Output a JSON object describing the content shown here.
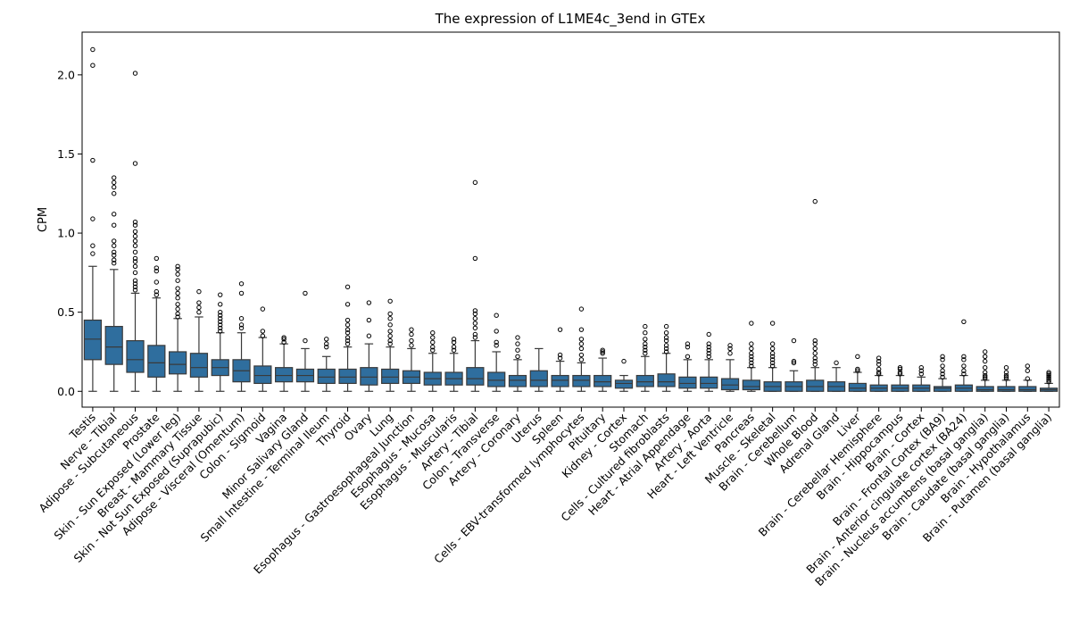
{
  "chart_data": {
    "type": "box",
    "title": "The expression of L1ME4c_3end in GTEx",
    "xlabel": "",
    "ylabel": "CPM",
    "ylim": [
      -0.1,
      2.27
    ],
    "yticks": [
      0.0,
      0.5,
      1.0,
      1.5,
      2.0
    ],
    "ytick_labels": [
      "0.0",
      "0.5",
      "1.0",
      "1.5",
      "2.0"
    ],
    "grid": false,
    "box_color": "#2f6e9e",
    "categories": [
      "Testis",
      "Nerve - Tibial",
      "Adipose - Subcutaneous",
      "Prostate",
      "Skin - Sun Exposed (Lower leg)",
      "Breast - Mammary Tissue",
      "Skin - Not Sun Exposed (Suprapubic)",
      "Adipose - Visceral (Omentum)",
      "Colon - Sigmoid",
      "Vagina",
      "Minor Salivary Gland",
      "Small Intestine - Terminal Ileum",
      "Thyroid",
      "Ovary",
      "Lung",
      "Esophagus - Gastroesophageal Junction",
      "Esophagus - Mucosa",
      "Esophagus - Muscularis",
      "Artery - Tibial",
      "Colon - Transverse",
      "Artery - Coronary",
      "Uterus",
      "Spleen",
      "Cells - EBV-transformed lymphocytes",
      "Pituitary",
      "Kidney - Cortex",
      "Stomach",
      "Cells - Cultured fibroblasts",
      "Heart - Atrial Appendage",
      "Artery - Aorta",
      "Heart - Left Ventricle",
      "Pancreas",
      "Muscle - Skeletal",
      "Brain - Cerebellum",
      "Whole Blood",
      "Adrenal Gland",
      "Liver",
      "Brain - Cerebellar Hemisphere",
      "Brain - Hippocampus",
      "Brain - Cortex",
      "Brain - Frontal Cortex (BA9)",
      "Brain - Anterior cingulate cortex (BA24)",
      "Brain - Nucleus accumbens (basal ganglia)",
      "Brain - Caudate (basal ganglia)",
      "Brain - Hypothalamus",
      "Brain - Putamen (basal ganglia)"
    ],
    "boxes": [
      {
        "min": 0.0,
        "q1": 0.2,
        "median": 0.33,
        "q3": 0.45,
        "max": 0.79,
        "outliers": [
          0.87,
          0.92,
          1.09,
          1.46,
          2.06,
          2.16
        ]
      },
      {
        "min": 0.0,
        "q1": 0.17,
        "median": 0.28,
        "q3": 0.41,
        "max": 0.77,
        "outliers": [
          0.81,
          0.83,
          0.86,
          0.88,
          0.92,
          0.95,
          1.05,
          1.12,
          1.25,
          1.29,
          1.32,
          1.35
        ]
      },
      {
        "min": 0.0,
        "q1": 0.12,
        "median": 0.2,
        "q3": 0.32,
        "max": 0.62,
        "outliers": [
          0.64,
          0.66,
          0.68,
          0.7,
          0.75,
          0.79,
          0.82,
          0.84,
          0.88,
          0.92,
          0.95,
          0.98,
          1.01,
          1.05,
          1.07,
          1.44,
          2.01
        ]
      },
      {
        "min": 0.0,
        "q1": 0.09,
        "median": 0.18,
        "q3": 0.29,
        "max": 0.59,
        "outliers": [
          0.61,
          0.63,
          0.69,
          0.76,
          0.78,
          0.84
        ]
      },
      {
        "min": 0.0,
        "q1": 0.11,
        "median": 0.17,
        "q3": 0.25,
        "max": 0.46,
        "outliers": [
          0.47,
          0.49,
          0.52,
          0.55,
          0.59,
          0.62,
          0.65,
          0.7,
          0.74,
          0.77,
          0.79
        ]
      },
      {
        "min": 0.0,
        "q1": 0.09,
        "median": 0.15,
        "q3": 0.24,
        "max": 0.47,
        "outliers": [
          0.5,
          0.53,
          0.56,
          0.63
        ]
      },
      {
        "min": 0.0,
        "q1": 0.1,
        "median": 0.15,
        "q3": 0.2,
        "max": 0.37,
        "outliers": [
          0.38,
          0.4,
          0.42,
          0.44,
          0.46,
          0.48,
          0.5,
          0.55,
          0.61
        ]
      },
      {
        "min": 0.0,
        "q1": 0.06,
        "median": 0.13,
        "q3": 0.2,
        "max": 0.37,
        "outliers": [
          0.4,
          0.42,
          0.46,
          0.62,
          0.68
        ]
      },
      {
        "min": 0.0,
        "q1": 0.05,
        "median": 0.1,
        "q3": 0.16,
        "max": 0.34,
        "outliers": [
          0.35,
          0.38,
          0.52
        ]
      },
      {
        "min": 0.0,
        "q1": 0.06,
        "median": 0.1,
        "q3": 0.15,
        "max": 0.3,
        "outliers": [
          0.31,
          0.33,
          0.34
        ]
      },
      {
        "min": 0.0,
        "q1": 0.06,
        "median": 0.1,
        "q3": 0.14,
        "max": 0.27,
        "outliers": [
          0.32,
          0.62
        ]
      },
      {
        "min": 0.0,
        "q1": 0.05,
        "median": 0.09,
        "q3": 0.14,
        "max": 0.22,
        "outliers": [
          0.28,
          0.3,
          0.33
        ]
      },
      {
        "min": 0.0,
        "q1": 0.05,
        "median": 0.09,
        "q3": 0.14,
        "max": 0.28,
        "outliers": [
          0.3,
          0.32,
          0.34,
          0.37,
          0.39,
          0.42,
          0.45,
          0.55,
          0.66
        ]
      },
      {
        "min": 0.0,
        "q1": 0.04,
        "median": 0.09,
        "q3": 0.15,
        "max": 0.3,
        "outliers": [
          0.35,
          0.45,
          0.56
        ]
      },
      {
        "min": 0.0,
        "q1": 0.05,
        "median": 0.09,
        "q3": 0.14,
        "max": 0.28,
        "outliers": [
          0.3,
          0.32,
          0.35,
          0.38,
          0.42,
          0.46,
          0.49,
          0.57
        ]
      },
      {
        "min": 0.0,
        "q1": 0.05,
        "median": 0.09,
        "q3": 0.13,
        "max": 0.27,
        "outliers": [
          0.29,
          0.32,
          0.36,
          0.39
        ]
      },
      {
        "min": 0.0,
        "q1": 0.04,
        "median": 0.08,
        "q3": 0.12,
        "max": 0.24,
        "outliers": [
          0.26,
          0.28,
          0.31,
          0.34,
          0.37
        ]
      },
      {
        "min": 0.0,
        "q1": 0.04,
        "median": 0.08,
        "q3": 0.12,
        "max": 0.24,
        "outliers": [
          0.26,
          0.28,
          0.31,
          0.33
        ]
      },
      {
        "min": 0.0,
        "q1": 0.04,
        "median": 0.08,
        "q3": 0.15,
        "max": 0.32,
        "outliers": [
          0.34,
          0.36,
          0.4,
          0.43,
          0.46,
          0.49,
          0.51,
          0.84,
          1.32
        ]
      },
      {
        "min": 0.0,
        "q1": 0.03,
        "median": 0.07,
        "q3": 0.12,
        "max": 0.25,
        "outliers": [
          0.29,
          0.31,
          0.38,
          0.48
        ]
      },
      {
        "min": 0.0,
        "q1": 0.03,
        "median": 0.07,
        "q3": 0.1,
        "max": 0.2,
        "outliers": [
          0.22,
          0.26,
          0.3,
          0.34
        ]
      },
      {
        "min": 0.0,
        "q1": 0.03,
        "median": 0.07,
        "q3": 0.13,
        "max": 0.27,
        "outliers": []
      },
      {
        "min": 0.0,
        "q1": 0.03,
        "median": 0.07,
        "q3": 0.1,
        "max": 0.19,
        "outliers": [
          0.21,
          0.23,
          0.39
        ]
      },
      {
        "min": 0.0,
        "q1": 0.03,
        "median": 0.07,
        "q3": 0.1,
        "max": 0.18,
        "outliers": [
          0.2,
          0.23,
          0.27,
          0.3,
          0.33,
          0.39,
          0.52
        ]
      },
      {
        "min": 0.0,
        "q1": 0.03,
        "median": 0.06,
        "q3": 0.1,
        "max": 0.21,
        "outliers": [
          0.24,
          0.25,
          0.26
        ]
      },
      {
        "min": 0.0,
        "q1": 0.02,
        "median": 0.05,
        "q3": 0.07,
        "max": 0.1,
        "outliers": [
          0.19
        ]
      },
      {
        "min": 0.0,
        "q1": 0.03,
        "median": 0.06,
        "q3": 0.1,
        "max": 0.22,
        "outliers": [
          0.24,
          0.26,
          0.28,
          0.3,
          0.33,
          0.37,
          0.41
        ]
      },
      {
        "min": 0.0,
        "q1": 0.03,
        "median": 0.06,
        "q3": 0.11,
        "max": 0.24,
        "outliers": [
          0.25,
          0.27,
          0.29,
          0.32,
          0.34,
          0.37,
          0.41
        ]
      },
      {
        "min": 0.0,
        "q1": 0.02,
        "median": 0.05,
        "q3": 0.09,
        "max": 0.2,
        "outliers": [
          0.22,
          0.28,
          0.3
        ]
      },
      {
        "min": 0.0,
        "q1": 0.02,
        "median": 0.05,
        "q3": 0.09,
        "max": 0.2,
        "outliers": [
          0.22,
          0.24,
          0.26,
          0.28,
          0.3,
          0.36
        ]
      },
      {
        "min": 0.0,
        "q1": 0.01,
        "median": 0.04,
        "q3": 0.08,
        "max": 0.2,
        "outliers": [
          0.24,
          0.27,
          0.29
        ]
      },
      {
        "min": 0.0,
        "q1": 0.01,
        "median": 0.03,
        "q3": 0.07,
        "max": 0.15,
        "outliers": [
          0.16,
          0.18,
          0.2,
          0.22,
          0.24,
          0.27,
          0.3,
          0.43
        ]
      },
      {
        "min": 0.0,
        "q1": 0.0,
        "median": 0.03,
        "q3": 0.06,
        "max": 0.15,
        "outliers": [
          0.16,
          0.18,
          0.2,
          0.22,
          0.24,
          0.27,
          0.3,
          0.43
        ]
      },
      {
        "min": 0.0,
        "q1": 0.0,
        "median": 0.03,
        "q3": 0.06,
        "max": 0.13,
        "outliers": [
          0.18,
          0.19,
          0.32
        ]
      },
      {
        "min": 0.0,
        "q1": 0.0,
        "median": 0.03,
        "q3": 0.07,
        "max": 0.15,
        "outliers": [
          0.17,
          0.19,
          0.21,
          0.24,
          0.27,
          0.3,
          0.32,
          1.2
        ]
      },
      {
        "min": 0.0,
        "q1": 0.0,
        "median": 0.03,
        "q3": 0.06,
        "max": 0.15,
        "outliers": [
          0.18
        ]
      },
      {
        "min": 0.0,
        "q1": 0.0,
        "median": 0.02,
        "q3": 0.05,
        "max": 0.12,
        "outliers": [
          0.13,
          0.14,
          0.22
        ]
      },
      {
        "min": 0.0,
        "q1": 0.0,
        "median": 0.02,
        "q3": 0.04,
        "max": 0.1,
        "outliers": [
          0.11,
          0.12,
          0.14,
          0.17,
          0.19,
          0.21
        ]
      },
      {
        "min": 0.0,
        "q1": 0.0,
        "median": 0.02,
        "q3": 0.04,
        "max": 0.1,
        "outliers": [
          0.11,
          0.12,
          0.14,
          0.15
        ]
      },
      {
        "min": 0.0,
        "q1": 0.0,
        "median": 0.02,
        "q3": 0.04,
        "max": 0.09,
        "outliers": [
          0.11,
          0.13,
          0.15
        ]
      },
      {
        "min": 0.0,
        "q1": 0.0,
        "median": 0.02,
        "q3": 0.03,
        "max": 0.08,
        "outliers": [
          0.09,
          0.11,
          0.13,
          0.16,
          0.2,
          0.22
        ]
      },
      {
        "min": 0.0,
        "q1": 0.0,
        "median": 0.02,
        "q3": 0.04,
        "max": 0.1,
        "outliers": [
          0.11,
          0.13,
          0.16,
          0.2,
          0.22,
          0.44
        ]
      },
      {
        "min": 0.0,
        "q1": 0.0,
        "median": 0.01,
        "q3": 0.03,
        "max": 0.07,
        "outliers": [
          0.08,
          0.09,
          0.1,
          0.12,
          0.15,
          0.19,
          0.22,
          0.25
        ]
      },
      {
        "min": 0.0,
        "q1": 0.0,
        "median": 0.01,
        "q3": 0.03,
        "max": 0.07,
        "outliers": [
          0.08,
          0.09,
          0.1,
          0.12,
          0.15
        ]
      },
      {
        "min": 0.0,
        "q1": 0.0,
        "median": 0.01,
        "q3": 0.03,
        "max": 0.07,
        "outliers": [
          0.08,
          0.13,
          0.16
        ]
      },
      {
        "min": 0.0,
        "q1": 0.0,
        "median": 0.01,
        "q3": 0.02,
        "max": 0.05,
        "outliers": [
          0.06,
          0.07,
          0.08,
          0.09,
          0.1,
          0.11,
          0.12
        ]
      }
    ]
  }
}
